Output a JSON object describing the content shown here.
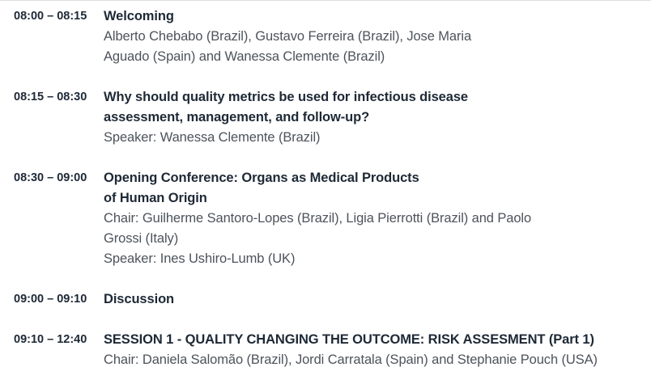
{
  "page": {
    "kind": "conference-program-schedule",
    "colors": {
      "background": "#ffffff",
      "top_divider": "#dedede",
      "heading_text": "#1e2936",
      "body_text": "#4d535b"
    }
  },
  "sessions": [
    {
      "time": "08:00 – 08:15",
      "title_lines": [
        "Welcoming"
      ],
      "detail_lines": [
        "Alberto Chebabo (Brazil), Gustavo Ferreira (Brazil), Jose Maria",
        "Aguado (Spain) and Wanessa Clemente (Brazil)"
      ]
    },
    {
      "time": "08:15 – 08:30",
      "title_lines": [
        "Why should quality metrics be used for infectious disease",
        "assessment, management, and follow-up?"
      ],
      "detail_lines": [
        "Speaker: Wanessa Clemente (Brazil)"
      ]
    },
    {
      "time": "08:30 – 09:00",
      "title_lines": [
        "Opening Conference: Organs as Medical Products",
        "of Human Origin"
      ],
      "detail_lines": [
        "Chair: Guilherme Santoro-Lopes (Brazil), Ligia Pierrotti (Brazil) and Paolo",
        "Grossi (Italy)",
        "Speaker: Ines Ushiro-Lumb (UK)"
      ]
    },
    {
      "time": "09:00 – 09:10",
      "title_lines": [
        "Discussion"
      ],
      "detail_lines": []
    },
    {
      "time": "09:10 – 12:40",
      "title_lines": [
        "SESSION 1 - QUALITY CHANGING THE OUTCOME: RISK ASSESMENT (Part 1)"
      ],
      "detail_lines": [
        "Chair: Daniela Salomão (Brazil), Jordi Carratala (Spain) and Stephanie Pouch (USA)"
      ]
    }
  ]
}
